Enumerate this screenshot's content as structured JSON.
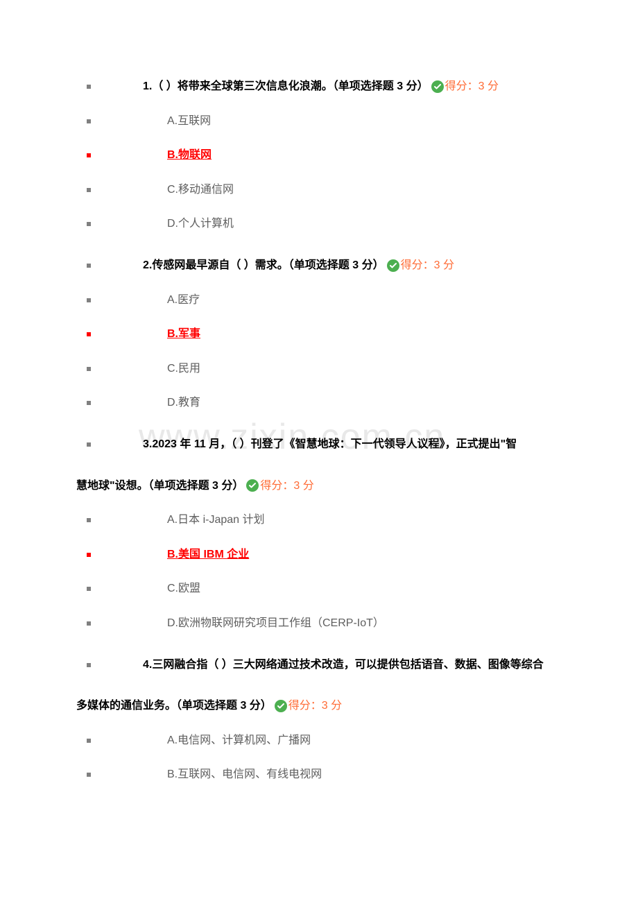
{
  "watermark": "www.zixin.com.cn",
  "score_label": "得分：",
  "score_value": "3 分",
  "questions": [
    {
      "number": "1.",
      "text_before": "（ ）将带来全球第三次信息化浪潮。（单项选择题 3 分）",
      "text_after": "",
      "options": [
        {
          "label": "A.互联网",
          "correct": false
        },
        {
          "label": "B.物联网",
          "correct": true
        },
        {
          "label": "C.移动通信网",
          "correct": false
        },
        {
          "label": "D.个人计算机",
          "correct": false
        }
      ]
    },
    {
      "number": "2.",
      "text_before": "传感网最早源自（ ）需求。（单项选择题 3 分）",
      "text_after": "",
      "options": [
        {
          "label": "A.医疗",
          "correct": false
        },
        {
          "label": "B.军事",
          "correct": true
        },
        {
          "label": "C.民用",
          "correct": false
        },
        {
          "label": "D.教育",
          "correct": false
        }
      ]
    },
    {
      "number": "3.",
      "text_before": "2023 年 11 月，（ ）刊登了《智慧地球：下一代领导人议程》，正式提出\"智",
      "text_after": "慧地球\"设想。（单项选择题 3 分）",
      "options": [
        {
          "label": "A.日本 i-Japan 计划",
          "correct": false
        },
        {
          "label": "B.美国 IBM 企业",
          "correct": true
        },
        {
          "label": "C.欧盟",
          "correct": false
        },
        {
          "label": "D.欧洲物联网研究项目工作组（CERP-IoT）",
          "correct": false
        }
      ]
    },
    {
      "number": "4.",
      "text_before": "三网融合指（ ）三大网络通过技术改造，可以提供包括语音、数据、图像等综合",
      "text_after": "多媒体的通信业务。（单项选择题 3 分）",
      "options": [
        {
          "label": "A.电信网、计算机网、广播网",
          "correct": false
        },
        {
          "label": "B.互联网、电信网、有线电视网",
          "correct": false
        }
      ]
    }
  ]
}
